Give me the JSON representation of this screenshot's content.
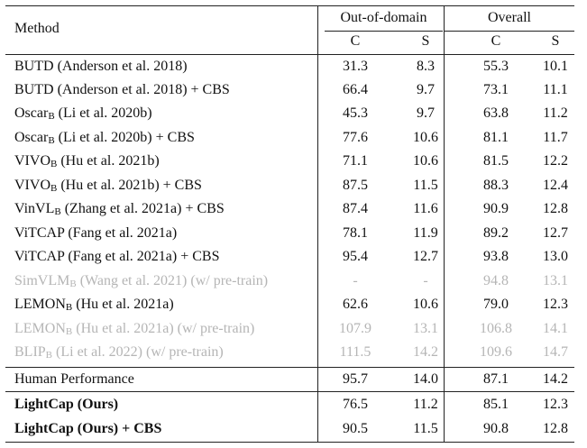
{
  "header": {
    "method": "Method",
    "ood": "Out-of-domain",
    "overall": "Overall",
    "c": "C",
    "s": "S"
  },
  "rows": [
    {
      "name": "BUTD",
      "sub": "",
      "ref": " (Anderson et al. 2018)",
      "ood_c": "31.3",
      "ood_s": "8.3",
      "all_c": "55.3",
      "all_s": "10.1",
      "style": "normal"
    },
    {
      "name": "BUTD",
      "sub": "",
      "ref": " (Anderson et al. 2018) + CBS",
      "ood_c": "66.4",
      "ood_s": "9.7",
      "all_c": "73.1",
      "all_s": "11.1",
      "style": "normal"
    },
    {
      "name": "Oscar",
      "sub": "B",
      "ref": " (Li et al. 2020b)",
      "ood_c": "45.3",
      "ood_s": "9.7",
      "all_c": "63.8",
      "all_s": "11.2",
      "style": "normal"
    },
    {
      "name": "Oscar",
      "sub": "B",
      "ref": " (Li et al. 2020b) + CBS",
      "ood_c": "77.6",
      "ood_s": "10.6",
      "all_c": "81.1",
      "all_s": "11.7",
      "style": "normal"
    },
    {
      "name": "VIVO",
      "sub": "B",
      "ref": " (Hu et al. 2021b)",
      "ood_c": "71.1",
      "ood_s": "10.6",
      "all_c": "81.5",
      "all_s": "12.2",
      "style": "normal"
    },
    {
      "name": "VIVO",
      "sub": "B",
      "ref": " (Hu et al. 2021b) + CBS",
      "ood_c": "87.5",
      "ood_s": "11.5",
      "all_c": "88.3",
      "all_s": "12.4",
      "style": "normal"
    },
    {
      "name": "VinVL",
      "sub": "B",
      "ref": " (Zhang et al. 2021a) + CBS",
      "ood_c": "87.4",
      "ood_s": "11.6",
      "all_c": "90.9",
      "all_s": "12.8",
      "style": "normal"
    },
    {
      "name": "ViTCAP",
      "sub": "",
      "ref": " (Fang et al. 2021a)",
      "ood_c": "78.1",
      "ood_s": "11.9",
      "all_c": "89.2",
      "all_s": "12.7",
      "style": "normal"
    },
    {
      "name": "ViTCAP",
      "sub": "",
      "ref": " (Fang et al. 2021a) + CBS",
      "ood_c": "95.4",
      "ood_s": "12.7",
      "all_c": "93.8",
      "all_s": "13.0",
      "style": "normal"
    },
    {
      "name": "SimVLM",
      "sub": "B",
      "ref": " (Wang et al. 2021) (w/ pre-train)",
      "ood_c": "-",
      "ood_s": "-",
      "all_c": "94.8",
      "all_s": "13.1",
      "style": "gray"
    },
    {
      "name": "LEMON",
      "sub": "B",
      "ref": " (Hu et al. 2021a)",
      "ood_c": "62.6",
      "ood_s": "10.6",
      "all_c": "79.0",
      "all_s": "12.3",
      "style": "normal"
    },
    {
      "name": "LEMON",
      "sub": "B",
      "ref": " (Hu et al. 2021a) (w/ pre-train)",
      "ood_c": "107.9",
      "ood_s": "13.1",
      "all_c": "106.8",
      "all_s": "14.1",
      "style": "gray"
    },
    {
      "name": "BLIP",
      "sub": "B",
      "ref": " (Li et al. 2022) (w/ pre-train)",
      "ood_c": "111.5",
      "ood_s": "14.2",
      "all_c": "109.6",
      "all_s": "14.7",
      "style": "gray"
    },
    {
      "name": "Human Performance",
      "sub": "",
      "ref": "",
      "ood_c": "95.7",
      "ood_s": "14.0",
      "all_c": "87.1",
      "all_s": "14.2",
      "style": "normal"
    },
    {
      "name": "LightCap (Ours)",
      "sub": "",
      "ref": "",
      "ood_c": "76.5",
      "ood_s": "11.2",
      "all_c": "85.1",
      "all_s": "12.3",
      "style": "bold"
    },
    {
      "name": "LightCap (Ours) + CBS",
      "sub": "",
      "ref": "",
      "ood_c": "90.5",
      "ood_s": "11.5",
      "all_c": "90.8",
      "all_s": "12.8",
      "style": "bold"
    }
  ]
}
